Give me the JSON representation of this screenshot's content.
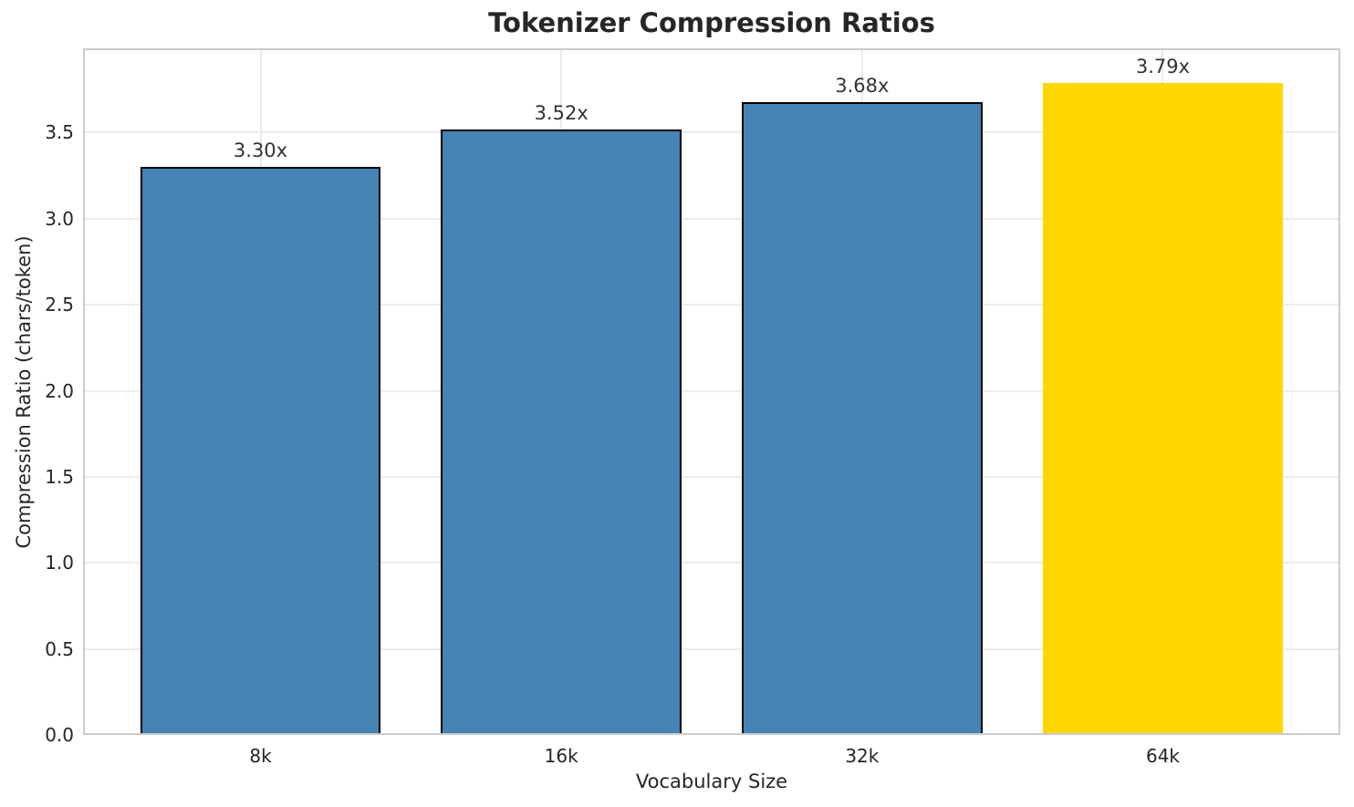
{
  "title": "Tokenizer Compression Ratios",
  "chart_data": {
    "type": "bar",
    "title": "Tokenizer Compression Ratios",
    "xlabel": "Vocabulary Size",
    "ylabel": "Compression Ratio (chars/token)",
    "categories": [
      "8k",
      "16k",
      "32k",
      "64k"
    ],
    "values": [
      3.3,
      3.52,
      3.68,
      3.79
    ],
    "bar_labels": [
      "3.30x",
      "3.52x",
      "3.68x",
      "3.79x"
    ],
    "bar_colors": [
      "#4682B4",
      "#4682B4",
      "#4682B4",
      "#FFD700"
    ],
    "bar_edge_colors": [
      "#000000",
      "#000000",
      "#000000",
      "none"
    ],
    "bar_color_default": "#4682B4",
    "highlight_color": "#FFD700",
    "ylim": [
      0,
      3.99
    ],
    "yticks": [
      0.0,
      0.5,
      1.0,
      1.5,
      2.0,
      2.5,
      3.0,
      3.5
    ],
    "ytick_labels": [
      "0.0",
      "0.5",
      "1.0",
      "1.5",
      "2.0",
      "2.5",
      "3.0",
      "3.5"
    ],
    "grid": true,
    "grid_color": "#ebebeb",
    "spine_color": "#cccccc",
    "text_color": "#262626",
    "legend": "none"
  }
}
